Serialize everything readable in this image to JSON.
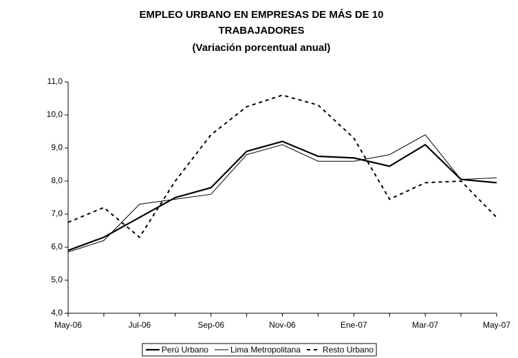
{
  "chart_data": {
    "type": "line",
    "title": [
      "EMPLEO URBANO EN EMPRESAS DE MÁS DE 10",
      "TRABAJADORES"
    ],
    "subtitle": "(Variación porcentual anual)",
    "categories": [
      "May-06",
      null,
      "Jul-06",
      null,
      "Sep-06",
      null,
      "Nov-06",
      null,
      "Ene-07",
      null,
      "Mar-07",
      null,
      "May-07"
    ],
    "series": [
      {
        "name": "Perú Urbano",
        "color": "#000000",
        "style": "solid",
        "width": 2.2,
        "values": [
          5.9,
          6.3,
          6.9,
          7.5,
          7.8,
          8.9,
          9.2,
          8.75,
          8.7,
          8.45,
          9.1,
          8.05,
          7.95
        ]
      },
      {
        "name": "Lima Metropolitana",
        "color": "#000000",
        "style": "solid",
        "width": 1,
        "values": [
          5.85,
          6.2,
          7.3,
          7.45,
          7.6,
          8.8,
          9.1,
          8.6,
          8.6,
          8.8,
          9.4,
          8.05,
          8.1
        ]
      },
      {
        "name": "Resto Urbano",
        "color": "#000000",
        "style": "dashed",
        "width": 2,
        "values": [
          6.75,
          7.2,
          6.3,
          8.0,
          9.4,
          10.25,
          10.6,
          10.3,
          9.3,
          7.45,
          7.95,
          8.0,
          6.9
        ]
      }
    ],
    "ylim": [
      4,
      11
    ],
    "yticks": [
      {
        "value": 4,
        "label": "4,0"
      },
      {
        "value": 5,
        "label": "5,0"
      },
      {
        "value": 6,
        "label": "6,0"
      },
      {
        "value": 7,
        "label": "7,0"
      },
      {
        "value": 8,
        "label": "8,0"
      },
      {
        "value": 9,
        "label": "9,0"
      },
      {
        "value": 10,
        "label": "10,0"
      },
      {
        "value": 11,
        "label": "11,0"
      }
    ],
    "grid": false,
    "legend": "bottom"
  }
}
